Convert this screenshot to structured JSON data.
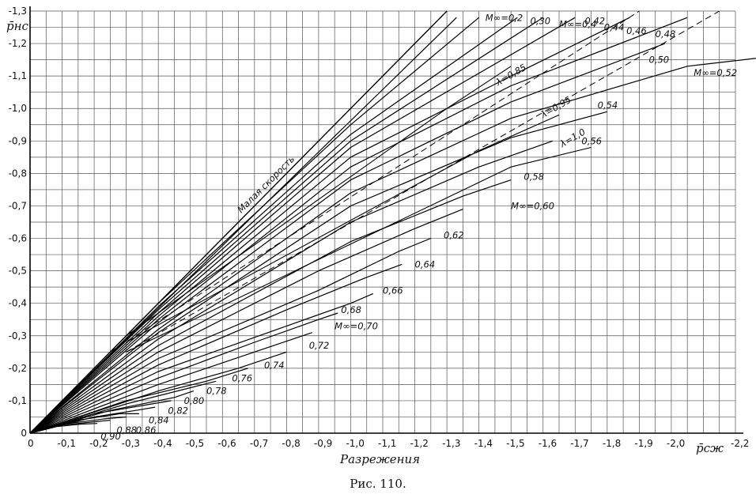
{
  "chart_data": {
    "type": "line",
    "xlabel": "Разрежения",
    "xaxis_name": "p̄сж",
    "ylabel": "p̄нс",
    "xlim": [
      0,
      -2.2
    ],
    "ylim": [
      0,
      -1.3
    ],
    "grid": true,
    "x_ticks": [
      "0",
      "-0,1",
      "-0,2",
      "-0,3",
      "-0,4",
      "-0,5",
      "-0,6",
      "-0,7",
      "-0,8",
      "-0,9",
      "-1,0",
      "-1,1",
      "-1,2",
      "-1,3",
      "-1,4",
      "-1,5",
      "-1,6",
      "-1,7",
      "-1,8",
      "-1,9",
      "-2,0",
      "-2,2"
    ],
    "y_ticks": [
      "0",
      "-0,1",
      "-0,2",
      "-0,3",
      "-0,4",
      "-0,5",
      "-0,6",
      "-0,7",
      "-0,8",
      "-0,9",
      "-1,0",
      "-1,1",
      "-1,2",
      "-1,3"
    ],
    "low_speed_label": "Малая скорость",
    "low_speed_line": {
      "x": [
        0,
        -1.3
      ],
      "y": [
        0,
        -1.3
      ]
    },
    "series": [
      {
        "name": "M∞=0,2",
        "label_at": [
          -1.42,
          -1.27
        ],
        "points": [
          [
            0,
            0
          ],
          [
            -1.33,
            -1.28
          ]
        ]
      },
      {
        "name": "0,30",
        "label_at": [
          -1.56,
          -1.26
        ],
        "points": [
          [
            0,
            0
          ],
          [
            -0.4,
            -0.4
          ],
          [
            -1.0,
            -0.95
          ],
          [
            -1.4,
            -1.28
          ]
        ]
      },
      {
        "name": "M∞=0,4",
        "label_at": [
          -1.65,
          -1.25
        ],
        "points": [
          [
            0,
            0
          ],
          [
            -0.4,
            -0.39
          ],
          [
            -1.0,
            -0.92
          ],
          [
            -1.52,
            -1.28
          ]
        ]
      },
      {
        "name": "0,42",
        "label_at": [
          -1.73,
          -1.26
        ],
        "points": [
          [
            0,
            0
          ],
          [
            -0.4,
            -0.38
          ],
          [
            -1.0,
            -0.9
          ],
          [
            -1.6,
            -1.28
          ]
        ]
      },
      {
        "name": "0,44",
        "label_at": [
          -1.79,
          -1.24
        ],
        "points": [
          [
            0,
            0
          ],
          [
            -0.4,
            -0.37
          ],
          [
            -1.0,
            -0.88
          ],
          [
            -1.7,
            -1.28
          ]
        ]
      },
      {
        "name": "0,46",
        "label_at": [
          -1.86,
          -1.23
        ],
        "points": [
          [
            0,
            0
          ],
          [
            -0.4,
            -0.36
          ],
          [
            -1.0,
            -0.85
          ],
          [
            -1.5,
            -1.1
          ],
          [
            -1.87,
            -1.28
          ]
        ]
      },
      {
        "name": "0,48",
        "label_at": [
          -1.95,
          -1.22
        ],
        "points": [
          [
            0,
            0
          ],
          [
            -0.4,
            -0.35
          ],
          [
            -1.0,
            -0.82
          ],
          [
            -1.5,
            -1.07
          ],
          [
            -2.05,
            -1.28
          ]
        ]
      },
      {
        "name": "0,50",
        "label_at": [
          -1.93,
          -1.14
        ],
        "points": [
          [
            0,
            0
          ],
          [
            -0.4,
            -0.34
          ],
          [
            -1.0,
            -0.78
          ],
          [
            -1.5,
            -1.02
          ],
          [
            -1.98,
            -1.2
          ]
        ]
      },
      {
        "name": "M∞=0,52",
        "label_at": [
          -2.07,
          -1.1
        ],
        "points": [
          [
            0,
            0
          ],
          [
            -0.4,
            -0.32
          ],
          [
            -1.0,
            -0.74
          ],
          [
            -1.5,
            -0.97
          ],
          [
            -2.05,
            -1.13
          ],
          [
            -2.4,
            -1.17
          ]
        ]
      },
      {
        "name": "0,54",
        "label_at": [
          -1.77,
          -1.0
        ],
        "points": [
          [
            0,
            0
          ],
          [
            -0.4,
            -0.31
          ],
          [
            -1.0,
            -0.7
          ],
          [
            -1.5,
            -0.91
          ],
          [
            -1.8,
            -0.99
          ]
        ]
      },
      {
        "name": "0,56",
        "label_at": [
          -1.72,
          -0.89
        ],
        "points": [
          [
            0,
            0
          ],
          [
            -0.4,
            -0.29
          ],
          [
            -1.0,
            -0.65
          ],
          [
            -1.4,
            -0.82
          ],
          [
            -1.63,
            -0.9
          ]
        ]
      },
      {
        "name": "0,58",
        "label_at": [
          -1.54,
          -0.78
        ],
        "points": [
          [
            0,
            0
          ],
          [
            -0.4,
            -0.27
          ],
          [
            -1.0,
            -0.59
          ],
          [
            -1.35,
            -0.73
          ],
          [
            -1.5,
            -0.78
          ]
        ]
      },
      {
        "name": "M∞=0,60",
        "label_at": [
          -1.5,
          -0.69
        ],
        "points": [
          [
            0,
            0
          ],
          [
            -0.4,
            -0.25
          ],
          [
            -0.9,
            -0.5
          ],
          [
            -1.2,
            -0.63
          ],
          [
            -1.35,
            -0.69
          ]
        ]
      },
      {
        "name": "0,62",
        "label_at": [
          -1.29,
          -0.6
        ],
        "points": [
          [
            0,
            0
          ],
          [
            -0.4,
            -0.23
          ],
          [
            -0.9,
            -0.44
          ],
          [
            -1.15,
            -0.56
          ],
          [
            -1.25,
            -0.6
          ]
        ]
      },
      {
        "name": "0,64",
        "label_at": [
          -1.2,
          -0.51
        ],
        "points": [
          [
            0,
            0
          ],
          [
            -0.4,
            -0.21
          ],
          [
            -0.8,
            -0.38
          ],
          [
            -1.05,
            -0.48
          ],
          [
            -1.16,
            -0.52
          ]
        ]
      },
      {
        "name": "0,66",
        "label_at": [
          -1.1,
          -0.43
        ],
        "points": [
          [
            0,
            0
          ],
          [
            -0.4,
            -0.19
          ],
          [
            -0.8,
            -0.33
          ],
          [
            -1.0,
            -0.4
          ],
          [
            -1.07,
            -0.43
          ]
        ]
      },
      {
        "name": "0,68",
        "label_at": [
          -0.97,
          -0.37
        ],
        "points": [
          [
            0,
            0
          ],
          [
            -0.4,
            -0.17
          ],
          [
            -0.7,
            -0.28
          ],
          [
            -0.9,
            -0.35
          ],
          [
            -0.96,
            -0.37
          ]
        ]
      },
      {
        "name": "M∞=0,70",
        "label_at": [
          -0.95,
          -0.32
        ],
        "points": [
          [
            0,
            0
          ],
          [
            -0.4,
            -0.15
          ],
          [
            -0.7,
            -0.25
          ],
          [
            -0.88,
            -0.31
          ]
        ]
      },
      {
        "name": "0,72",
        "label_at": [
          -0.87,
          -0.26
        ],
        "points": [
          [
            0,
            0
          ],
          [
            -0.4,
            -0.13
          ],
          [
            -0.65,
            -0.2
          ],
          [
            -0.8,
            -0.25
          ]
        ]
      },
      {
        "name": "0,74",
        "label_at": [
          -0.73,
          -0.2
        ],
        "points": [
          [
            0,
            0
          ],
          [
            -0.3,
            -0.1
          ],
          [
            -0.55,
            -0.16
          ],
          [
            -0.68,
            -0.2
          ]
        ]
      },
      {
        "name": "0,76",
        "label_at": [
          -0.63,
          -0.16
        ],
        "points": [
          [
            0,
            0
          ],
          [
            -0.3,
            -0.09
          ],
          [
            -0.5,
            -0.14
          ],
          [
            -0.58,
            -0.16
          ]
        ]
      },
      {
        "name": "0,78",
        "label_at": [
          -0.55,
          -0.12
        ],
        "points": [
          [
            0,
            0
          ],
          [
            -0.25,
            -0.07
          ],
          [
            -0.45,
            -0.11
          ],
          [
            -0.51,
            -0.13
          ]
        ]
      },
      {
        "name": "0,80",
        "label_at": [
          -0.48,
          -0.09
        ],
        "points": [
          [
            0,
            0
          ],
          [
            -0.2,
            -0.06
          ],
          [
            -0.38,
            -0.09
          ],
          [
            -0.44,
            -0.1
          ]
        ]
      },
      {
        "name": "0,82",
        "label_at": [
          -0.43,
          -0.06
        ],
        "points": [
          [
            0,
            0
          ],
          [
            -0.2,
            -0.05
          ],
          [
            -0.33,
            -0.07
          ],
          [
            -0.39,
            -0.08
          ]
        ]
      },
      {
        "name": "0,84",
        "label_at": [
          -0.37,
          -0.03
        ],
        "points": [
          [
            0,
            0
          ],
          [
            -0.15,
            -0.04
          ],
          [
            -0.28,
            -0.06
          ],
          [
            -0.34,
            -0.06
          ]
        ]
      },
      {
        "name": "0,86",
        "label_at": [
          -0.33,
          -0.0
        ],
        "points": [
          [
            0,
            0
          ],
          [
            -0.12,
            -0.03
          ],
          [
            -0.24,
            -0.045
          ],
          [
            -0.3,
            -0.05
          ]
        ]
      },
      {
        "name": "0,88",
        "label_at": [
          -0.27,
          0.0
        ],
        "points": [
          [
            0,
            0
          ],
          [
            -0.1,
            -0.025
          ],
          [
            -0.2,
            -0.035
          ],
          [
            -0.25,
            -0.04
          ]
        ]
      },
      {
        "name": "0,90",
        "label_at": [
          -0.22,
          0.02
        ],
        "points": [
          [
            0,
            0
          ],
          [
            -0.08,
            -0.02
          ],
          [
            -0.16,
            -0.028
          ],
          [
            -0.21,
            -0.03
          ]
        ]
      }
    ],
    "lambda_lines": [
      {
        "name": "λ=0,85",
        "label_at": [
          -1.46,
          -1.07
        ],
        "points": [
          [
            -0.3,
            -0.3
          ],
          [
            -1.3,
            -1.0
          ],
          [
            -1.5,
            -1.13
          ]
        ]
      },
      {
        "name": "λ=0,95",
        "label_at": [
          -1.6,
          -0.97
        ],
        "points": [
          [
            -0.3,
            -0.28
          ],
          [
            -1.4,
            -0.87
          ],
          [
            -1.65,
            -0.98
          ]
        ]
      },
      {
        "name": "λ=1,0",
        "label_at": [
          -1.66,
          -0.88
        ],
        "points": [
          [
            -0.3,
            -0.25
          ],
          [
            -1.5,
            -0.82
          ],
          [
            -1.75,
            -0.88
          ]
        ]
      }
    ],
    "dashed_lines": [
      {
        "points": [
          [
            -0.25,
            -0.25
          ],
          [
            -1.9,
            -1.3
          ]
        ]
      },
      {
        "points": [
          [
            -0.3,
            -0.25
          ],
          [
            -2.15,
            -1.3
          ]
        ]
      }
    ]
  },
  "caption": "Рис. 110."
}
